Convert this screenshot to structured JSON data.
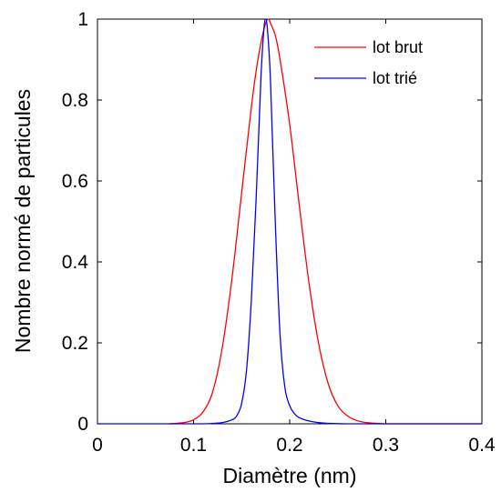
{
  "chart_data": {
    "type": "line",
    "xlabel": "Diamètre (nm)",
    "ylabel": "Nombre normé de particules",
    "xlim": [
      0,
      0.4
    ],
    "ylim": [
      0,
      1
    ],
    "x_ticks": [
      "0",
      "0.1",
      "0.2",
      "0.3",
      "0.4"
    ],
    "y_ticks": [
      "0",
      "0.2",
      "0.4",
      "0.6",
      "0.8",
      "1"
    ],
    "grid": false,
    "legend_position": "top-right",
    "series": [
      {
        "name": "lot brut",
        "color": "#ff0000",
        "x": [
          0.075,
          0.09,
          0.1,
          0.11,
          0.12,
          0.13,
          0.14,
          0.15,
          0.16,
          0.165,
          0.17,
          0.175,
          0.178,
          0.18,
          0.185,
          0.19,
          0.2,
          0.21,
          0.22,
          0.23,
          0.24,
          0.25,
          0.26,
          0.27,
          0.28,
          0.3,
          0.35,
          0.4
        ],
        "y": [
          0.0,
          0.003,
          0.01,
          0.03,
          0.08,
          0.19,
          0.36,
          0.57,
          0.78,
          0.87,
          0.94,
          0.99,
          1.0,
          0.99,
          0.96,
          0.9,
          0.74,
          0.54,
          0.35,
          0.2,
          0.1,
          0.045,
          0.02,
          0.008,
          0.003,
          0.0,
          0.0,
          0.0
        ]
      },
      {
        "name": "lot trié",
        "color": "#0000ff",
        "x": [
          0.0,
          0.1,
          0.12,
          0.13,
          0.14,
          0.145,
          0.15,
          0.155,
          0.16,
          0.165,
          0.17,
          0.173,
          0.175,
          0.177,
          0.18,
          0.185,
          0.19,
          0.195,
          0.2,
          0.205,
          0.21,
          0.22,
          0.23,
          0.24,
          0.26,
          0.3,
          0.4
        ],
        "y": [
          0.0,
          0.0,
          0.001,
          0.003,
          0.01,
          0.02,
          0.05,
          0.13,
          0.3,
          0.55,
          0.85,
          0.97,
          1.0,
          0.97,
          0.85,
          0.5,
          0.22,
          0.09,
          0.045,
          0.025,
          0.015,
          0.007,
          0.003,
          0.001,
          0.0,
          0.0,
          0.0
        ]
      }
    ]
  }
}
